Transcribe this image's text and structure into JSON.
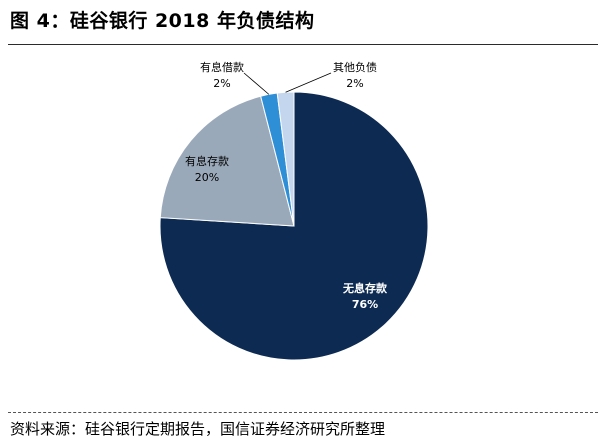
{
  "title": "图 4：硅谷银行 2018 年负债结构",
  "source": "资料来源：硅谷银行定期报告，国信证券经济研究所整理",
  "chart_data": {
    "type": "pie",
    "title": "图 4：硅谷银行 2018 年负债结构",
    "slices": [
      {
        "label": "无息存款",
        "value": 76,
        "value_label": "76%",
        "color": "#0d2a52"
      },
      {
        "label": "有息存款",
        "value": 20,
        "value_label": "20%",
        "color": "#9aa9b9"
      },
      {
        "label": "有息借款",
        "value": 2,
        "value_label": "2%",
        "color": "#2e8ed6"
      },
      {
        "label": "其他负债",
        "value": 2,
        "value_label": "2%",
        "color": "#c3d6ee"
      }
    ],
    "legend": "none"
  }
}
